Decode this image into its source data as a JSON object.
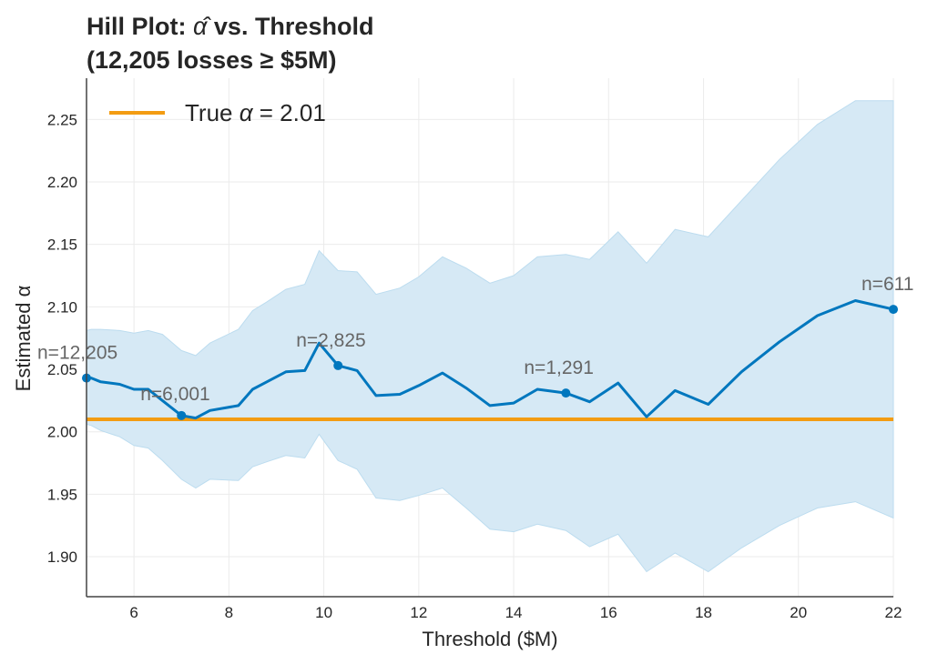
{
  "chart_data": {
    "type": "line",
    "title_line1_prefix": "Hill Plot: ",
    "title_alpha_hat": "α̂",
    "title_line1_suffix": " vs. Threshold",
    "title_line2": "(12,205 losses ≥ $5M)",
    "xlabel": "Threshold ($M)",
    "ylabel": "Estimated α",
    "xlim": [
      5,
      22
    ],
    "ylim": [
      1.868,
      2.283
    ],
    "xticks": [
      6,
      8,
      10,
      12,
      14,
      16,
      18,
      20,
      22
    ],
    "yticks": [
      1.9,
      1.95,
      2.0,
      2.05,
      2.1,
      2.15,
      2.2,
      2.25
    ],
    "grid": true,
    "legend_position": "top-left",
    "colors": {
      "estimate": "#0077be",
      "band": "#d6e9f5",
      "band_edge": "#bcdcef",
      "true_line": "#f39c12",
      "annotation": "#666666"
    },
    "series": [
      {
        "name": "Hill estimate",
        "x": [
          5.0,
          5.1,
          5.3,
          5.7,
          6.0,
          6.3,
          6.6,
          7.0,
          7.3,
          7.6,
          8.2,
          8.5,
          8.8,
          9.2,
          9.6,
          9.9,
          10.3,
          10.7,
          11.1,
          11.6,
          12.0,
          12.5,
          13.0,
          13.5,
          14.0,
          14.5,
          15.1,
          15.6,
          16.2,
          16.8,
          17.4,
          18.1,
          18.8,
          19.6,
          20.4,
          21.2,
          22.0
        ],
        "y": [
          2.043,
          2.043,
          2.04,
          2.038,
          2.034,
          2.034,
          2.025,
          2.013,
          2.011,
          2.017,
          2.021,
          2.034,
          2.04,
          2.048,
          2.049,
          2.071,
          2.053,
          2.049,
          2.029,
          2.03,
          2.037,
          2.047,
          2.035,
          2.021,
          2.023,
          2.034,
          2.031,
          2.024,
          2.039,
          2.012,
          2.033,
          2.022,
          2.048,
          2.072,
          2.093,
          2.105,
          2.098
        ]
      },
      {
        "name": "Confidence band",
        "upper": [
          2.081,
          2.082,
          2.082,
          2.081,
          2.079,
          2.081,
          2.078,
          2.065,
          2.061,
          2.071,
          2.082,
          2.097,
          2.104,
          2.114,
          2.118,
          2.145,
          2.129,
          2.128,
          2.11,
          2.115,
          2.124,
          2.14,
          2.131,
          2.119,
          2.125,
          2.14,
          2.142,
          2.138,
          2.16,
          2.135,
          2.162,
          2.156,
          2.185,
          2.218,
          2.246,
          2.265,
          2.265
        ],
        "lower": [
          2.006,
          2.005,
          2.001,
          1.996,
          1.989,
          1.987,
          1.977,
          1.962,
          1.955,
          1.962,
          1.961,
          1.972,
          1.976,
          1.981,
          1.979,
          1.998,
          1.977,
          1.97,
          1.947,
          1.945,
          1.949,
          1.955,
          1.939,
          1.922,
          1.92,
          1.926,
          1.921,
          1.908,
          1.918,
          1.888,
          1.903,
          1.888,
          1.907,
          1.925,
          1.939,
          1.944,
          1.931
        ]
      },
      {
        "name": "True α",
        "y": 2.01
      }
    ],
    "legend": {
      "prefix": "True ",
      "alpha": "α",
      "suffix": " = 2.01"
    },
    "markers": [
      {
        "x": 5.0,
        "y": 2.043,
        "label": "n=12,205"
      },
      {
        "x": 7.0,
        "y": 2.013,
        "label": "n=6,001"
      },
      {
        "x": 10.3,
        "y": 2.053,
        "label": "n=2,825"
      },
      {
        "x": 15.1,
        "y": 2.031,
        "label": "n=1,291"
      },
      {
        "x": 22.0,
        "y": 2.098,
        "label": "n=611"
      }
    ]
  }
}
